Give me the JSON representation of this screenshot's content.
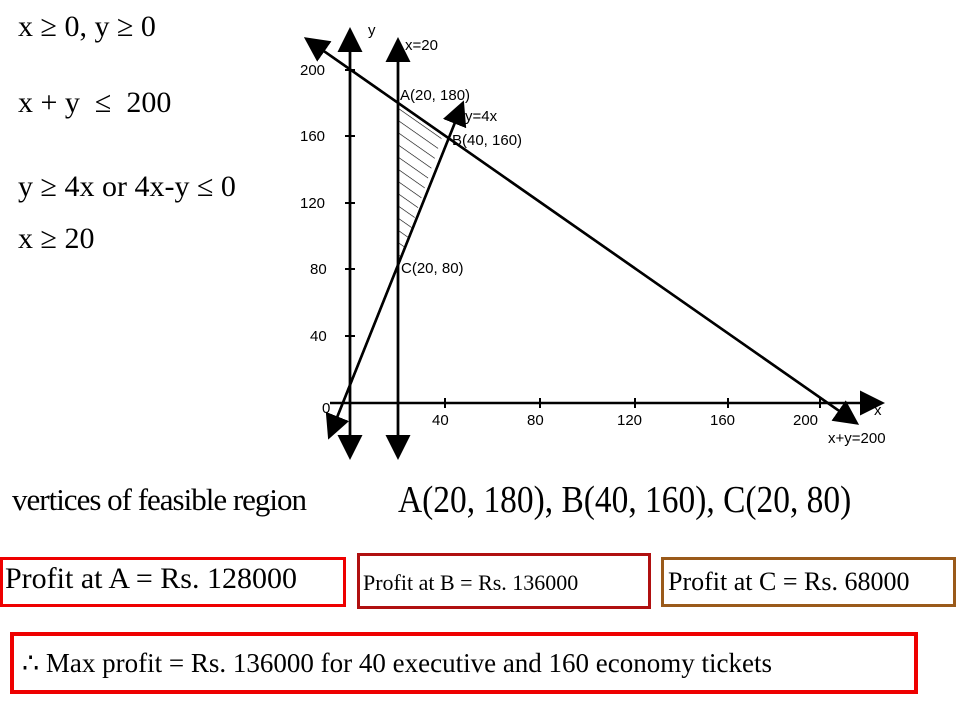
{
  "constraints": [
    "x ≥ 0, y ≥ 0",
    "x + y  ≤  200",
    "y ≥ 4x or 4x-y ≤ 0",
    "x ≥ 20"
  ],
  "graph": {
    "x_axis_label": "x",
    "y_axis_label": "y",
    "x_ticks": [
      "40",
      "80",
      "120",
      "160",
      "200"
    ],
    "y_ticks": [
      "0",
      "40",
      "80",
      "120",
      "160",
      "200"
    ],
    "line_labels": [
      "x=20",
      "y=4x",
      "x+y=200"
    ],
    "points": [
      "A(20, 180)",
      "B(40, 160)",
      "C(20, 80)"
    ]
  },
  "vertices": {
    "label": "vertices of feasible region",
    "text": "A(20, 180), B(40, 160), C(20, 80)"
  },
  "profits": [
    "Profit at A = Rs. 128000",
    "Profit at B = Rs. 136000",
    "Profit at C = Rs. 68000"
  ],
  "conclusion": "∴ Max profit = Rs. 136000 for 40 executive and 160 economy tickets"
}
